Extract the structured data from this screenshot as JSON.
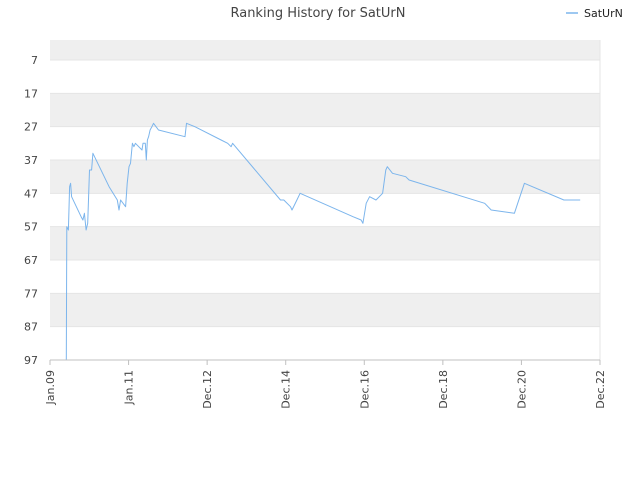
{
  "chart_data": {
    "type": "line",
    "title": "Ranking History for SatUrN",
    "xlabel": "",
    "ylabel": "",
    "x_ticks": [
      "Jan.09",
      "Jan.11",
      "Dec.12",
      "Dec.14",
      "Dec.16",
      "Dec.18",
      "Dec.20",
      "Dec.22"
    ],
    "x_range": [
      "2009-01",
      "2022-12"
    ],
    "y_ticks": [
      7,
      17,
      27,
      37,
      47,
      57,
      67,
      77,
      87,
      97
    ],
    "y_range": [
      1,
      97
    ],
    "y_inverted": true,
    "grid": "horizontal alternating bands",
    "legend_position": "top-right",
    "series": [
      {
        "name": "SatUrN",
        "color": "#7cb5ec",
        "points": [
          [
            "2009-06-01",
            97
          ],
          [
            "2009-06-05",
            57
          ],
          [
            "2009-06-20",
            58
          ],
          [
            "2009-07-01",
            45
          ],
          [
            "2009-07-10",
            44
          ],
          [
            "2009-07-20",
            48
          ],
          [
            "2009-10-15",
            54
          ],
          [
            "2009-11-01",
            55
          ],
          [
            "2009-11-15",
            53
          ],
          [
            "2009-12-01",
            58
          ],
          [
            "2009-12-15",
            56
          ],
          [
            "2010-01-01",
            40
          ],
          [
            "2010-01-20",
            40
          ],
          [
            "2010-02-01",
            35
          ],
          [
            "2010-07-01",
            45
          ],
          [
            "2010-09-15",
            49
          ],
          [
            "2010-10-01",
            52
          ],
          [
            "2010-10-15",
            49
          ],
          [
            "2010-12-01",
            51
          ],
          [
            "2010-12-15",
            44
          ],
          [
            "2011-01-01",
            39
          ],
          [
            "2011-01-15",
            38
          ],
          [
            "2011-02-01",
            32
          ],
          [
            "2011-02-15",
            33
          ],
          [
            "2011-03-01",
            32
          ],
          [
            "2011-05-01",
            34
          ],
          [
            "2011-05-10",
            32
          ],
          [
            "2011-06-01",
            32
          ],
          [
            "2011-06-10",
            37
          ],
          [
            "2011-06-20",
            31
          ],
          [
            "2011-07-01",
            30
          ],
          [
            "2011-07-15",
            28
          ],
          [
            "2011-08-01",
            27
          ],
          [
            "2011-08-15",
            26
          ],
          [
            "2011-10-01",
            28
          ],
          [
            "2012-06-01",
            30
          ],
          [
            "2012-06-15",
            26
          ],
          [
            "2012-09-01",
            27
          ],
          [
            "2013-05-01",
            31
          ],
          [
            "2013-07-01",
            32
          ],
          [
            "2013-08-01",
            33
          ],
          [
            "2013-08-15",
            32
          ],
          [
            "2014-11-01",
            49
          ],
          [
            "2014-12-01",
            49
          ],
          [
            "2015-02-01",
            51
          ],
          [
            "2015-02-15",
            52
          ],
          [
            "2015-04-01",
            49
          ],
          [
            "2015-05-01",
            47
          ],
          [
            "2016-09-01",
            54
          ],
          [
            "2016-11-15",
            55
          ],
          [
            "2016-12-01",
            56
          ],
          [
            "2017-01-01",
            50
          ],
          [
            "2017-02-01",
            48
          ],
          [
            "2017-04-01",
            49
          ],
          [
            "2017-06-01",
            47
          ],
          [
            "2017-07-01",
            40
          ],
          [
            "2017-07-15",
            39
          ],
          [
            "2017-09-01",
            41
          ],
          [
            "2018-01-01",
            42
          ],
          [
            "2018-02-01",
            43
          ],
          [
            "2020-01-01",
            50
          ],
          [
            "2020-03-01",
            52
          ],
          [
            "2020-10-01",
            53
          ],
          [
            "2020-11-01",
            50
          ],
          [
            "2021-01-01",
            44
          ],
          [
            "2022-01-01",
            49
          ],
          [
            "2022-06-01",
            49
          ]
        ]
      }
    ]
  }
}
